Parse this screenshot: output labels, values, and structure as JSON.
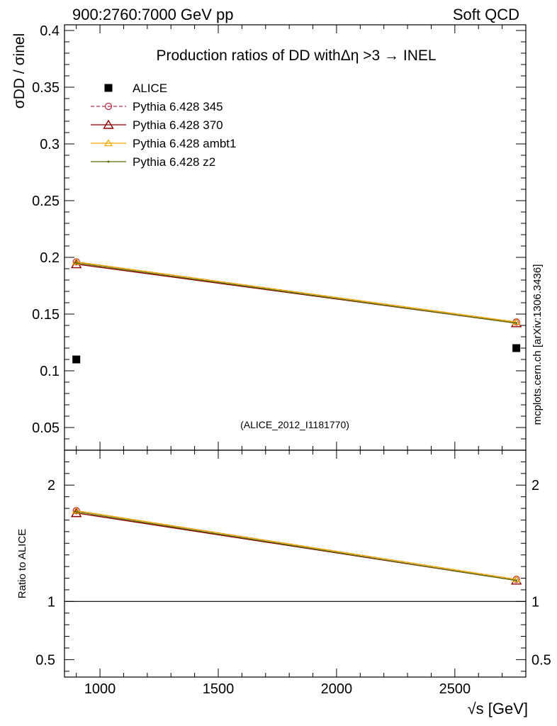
{
  "header": {
    "left": "900:2760:7000 GeV pp",
    "right": "Soft QCD"
  },
  "side_label": "mcplots.cern.ch [arXiv:1306.3436]",
  "chart_data": [
    {
      "panel": "main",
      "type": "scatter",
      "title": "Production ratios of DD withΔη >3 → INEL",
      "subtitle": "(ALICE_2012_I1181770)",
      "xlabel": "√s [GeV]",
      "ylabel": "σDD / σinel",
      "xlim": [
        850,
        2800
      ],
      "ylim": [
        0.03,
        0.405
      ],
      "x_ticks": [
        1000,
        1500,
        2000,
        2500
      ],
      "x_tick_labels": [
        "1000",
        "1500",
        "2000",
        "2500"
      ],
      "y_ticks": [
        0.05,
        0.1,
        0.15,
        0.2,
        0.25,
        0.3,
        0.35,
        0.4
      ],
      "y_tick_labels": [
        "0.05",
        "0.1",
        "0.15",
        "0.2",
        "0.25",
        "0.3",
        "0.35",
        "0.4"
      ],
      "grid": false,
      "legend_position": "top-left",
      "series": [
        {
          "name": "ALICE",
          "x": [
            900,
            2760
          ],
          "y": [
            0.11,
            0.12
          ],
          "color": "#000000",
          "marker": "square",
          "line": "none"
        },
        {
          "name": "Pythia 6.428 345",
          "x": [
            900,
            2760
          ],
          "y": [
            0.196,
            0.143
          ],
          "color": "#b5314a",
          "marker": "circle",
          "line": "dashed"
        },
        {
          "name": "Pythia 6.428 370",
          "x": [
            900,
            2760
          ],
          "y": [
            0.194,
            0.142
          ],
          "color": "#8b0000",
          "marker": "triangle",
          "line": "solid"
        },
        {
          "name": "Pythia 6.428 ambt1",
          "x": [
            900,
            2760
          ],
          "y": [
            0.196,
            0.143
          ],
          "color": "#f0a800",
          "marker": "triangle-small",
          "line": "solid"
        },
        {
          "name": "Pythia 6.428 z2",
          "x": [
            900,
            2760
          ],
          "y": [
            0.195,
            0.142
          ],
          "color": "#5a6b00",
          "marker": "dot",
          "line": "solid"
        }
      ]
    },
    {
      "panel": "ratio",
      "type": "line",
      "ylabel": "Ratio to ALICE",
      "xlabel": "√s [GeV]",
      "xlim": [
        850,
        2800
      ],
      "ylim": [
        0.35,
        2.3
      ],
      "y_ticks": [
        0.5,
        1,
        2
      ],
      "y_tick_labels": [
        "0.5",
        "1",
        "2"
      ],
      "reference_line": 1,
      "series": [
        {
          "name": "Pythia 6.428 345",
          "x": [
            900,
            2760
          ],
          "y": [
            1.78,
            1.19
          ],
          "color": "#b5314a",
          "marker": "circle",
          "line": "dashed"
        },
        {
          "name": "Pythia 6.428 370",
          "x": [
            900,
            2760
          ],
          "y": [
            1.76,
            1.18
          ],
          "color": "#8b0000",
          "marker": "triangle",
          "line": "solid"
        },
        {
          "name": "Pythia 6.428 ambt1",
          "x": [
            900,
            2760
          ],
          "y": [
            1.78,
            1.19
          ],
          "color": "#f0a800",
          "marker": "triangle-small",
          "line": "solid"
        },
        {
          "name": "Pythia 6.428 z2",
          "x": [
            900,
            2760
          ],
          "y": [
            1.77,
            1.18
          ],
          "color": "#5a6b00",
          "marker": "dot",
          "line": "solid"
        }
      ]
    }
  ]
}
